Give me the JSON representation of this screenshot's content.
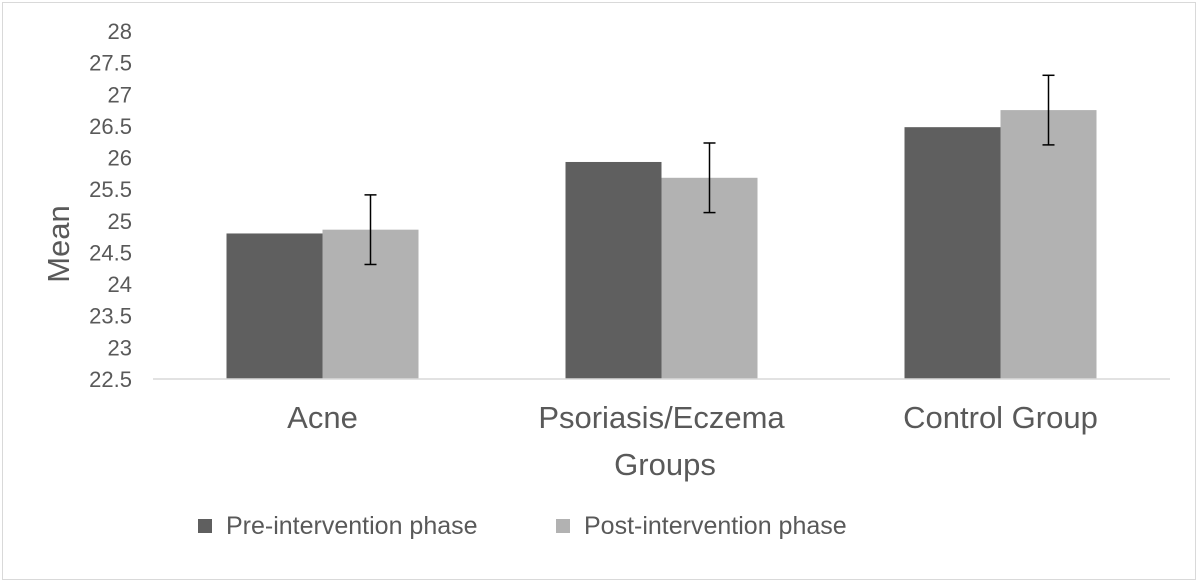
{
  "chart_data": {
    "type": "bar",
    "title": "",
    "xlabel": "Groups",
    "ylabel": "Mean",
    "categories": [
      "Acne",
      "Psoriasis/Eczema",
      "Control Group"
    ],
    "series": [
      {
        "name": "Pre-intervention phase",
        "color": "#5f5f5f",
        "values": [
          24.8,
          25.93,
          26.48
        ],
        "error": [
          null,
          null,
          null
        ]
      },
      {
        "name": "Post-intervention phase",
        "color": "#b2b2b2",
        "values": [
          24.86,
          25.68,
          26.75
        ],
        "error": [
          0.55,
          0.55,
          0.55
        ]
      }
    ],
    "ylim": [
      22.5,
      28
    ],
    "yticks": [
      "22.5",
      "23",
      "23.5",
      "24",
      "24.5",
      "25",
      "25.5",
      "26",
      "26.5",
      "27",
      "27.5",
      "28"
    ],
    "grid": false,
    "legend_position": "bottom"
  }
}
